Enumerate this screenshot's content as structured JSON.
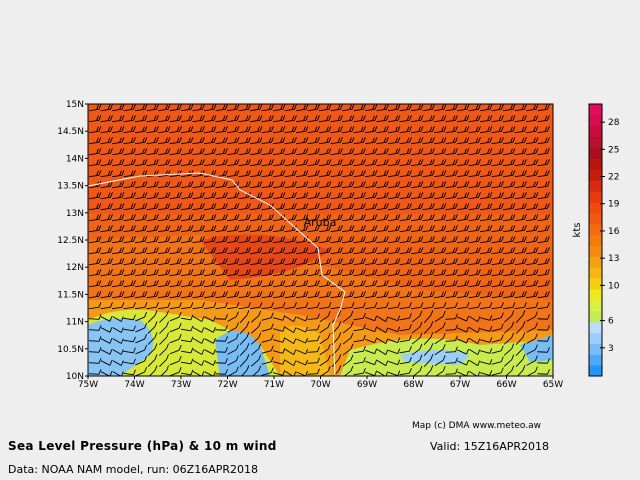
{
  "map": {
    "lat_ticks": [
      "15N",
      "14.5N",
      "14N",
      "13.5N",
      "13N",
      "12.5N",
      "12N",
      "11.5N",
      "11N",
      "10.5N",
      "10N"
    ],
    "lon_ticks": [
      "75W",
      "74W",
      "73W",
      "72W",
      "71W",
      "70W",
      "69W",
      "68W",
      "67W",
      "66W",
      "65W"
    ],
    "place_label": "Aruba",
    "wind_direction": "easterly"
  },
  "colorbar": {
    "unit": "kts",
    "tick_labels": [
      "3",
      "6",
      "10",
      "13",
      "16",
      "19",
      "22",
      "25",
      "28"
    ],
    "colors": [
      "#2196f8",
      "#4eaaf8",
      "#78bcf8",
      "#9ccff8",
      "#bcdcf8",
      "#c4ec58",
      "#d8f040",
      "#f0e820",
      "#f4d010",
      "#f4b810",
      "#f4a010",
      "#f48a10",
      "#f47a10",
      "#f46a10",
      "#f05a10",
      "#f04a10",
      "#e83a10",
      "#d82a10",
      "#c81c10",
      "#b81410",
      "#a81020",
      "#b81030",
      "#c80c40",
      "#d80c50",
      "#e00c60"
    ]
  },
  "footer": {
    "credit": "Map (c) DMA www.meteo.aw",
    "title": "Sea Level Pressure (hPa) & 10 m wind",
    "valid": "Valid: 15Z16APR2018",
    "source": "Data: NOAA NAM model, run: 06Z16APR2018"
  }
}
